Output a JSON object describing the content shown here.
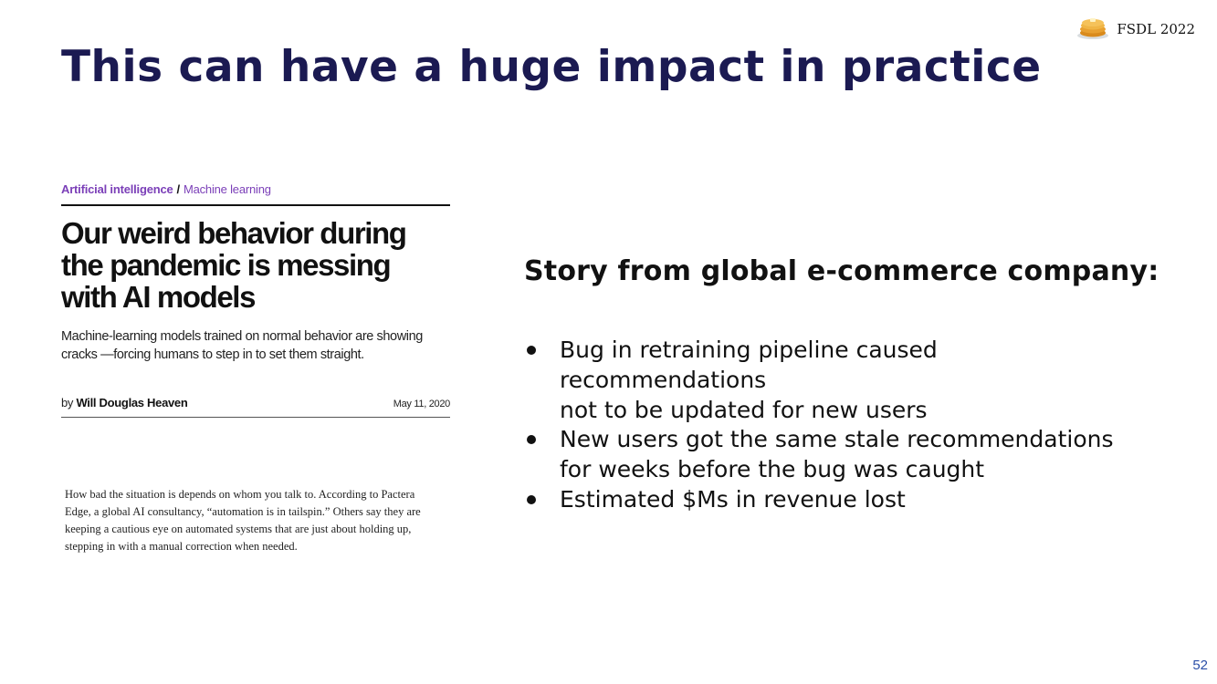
{
  "slide": {
    "title": "This can have a huge impact in practice",
    "badge_text": "FSDL 2022",
    "page_number": "52"
  },
  "article": {
    "category": "Artificial intelligence",
    "separator": "/",
    "subcategory": "Machine learning",
    "headline_lines": [
      "Our weird behavior during",
      "the pandemic is messing",
      "with AI models"
    ],
    "dek_lines": [
      "Machine-learning models trained on normal behavior are showing",
      "cracks —forcing humans to step in to set them straight."
    ],
    "byline_prefix": "by",
    "author": "Will Douglas Heaven",
    "date": "May 11, 2020",
    "body_lines": [
      "How bad the situation is depends on whom you talk to. According to Pactera",
      "Edge, a global AI consultancy, “automation is in tailspin.” Others say they are",
      "keeping a cautious eye on automated systems that are just about holding up,",
      "stepping in with a manual correction when needed."
    ]
  },
  "story": {
    "heading": "Story from global e-commerce company:",
    "bullets": [
      {
        "lines": [
          "Bug in retraining pipeline caused",
          "recommendations",
          "not to be updated for new users"
        ]
      },
      {
        "lines": [
          "New users got the same stale recommendations",
          "for weeks before the bug was caught"
        ]
      },
      {
        "lines": [
          "Estimated $Ms in revenue lost"
        ]
      }
    ]
  },
  "icons": {
    "badge_icon": "pancake-stack-icon"
  },
  "colors": {
    "title": "#1b1a52",
    "category": "#7b3fb8",
    "page_number": "#2b4fa8"
  }
}
